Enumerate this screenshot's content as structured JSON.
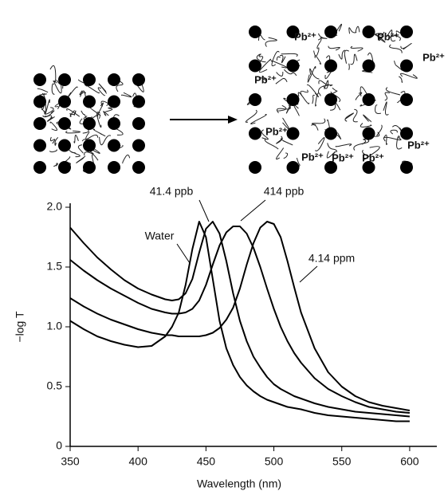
{
  "chart_data": {
    "type": "line",
    "x_label": "Wavelength (nm)",
    "y_label": "−log T",
    "x": [
      350,
      360,
      370,
      380,
      390,
      400,
      410,
      420,
      425,
      430,
      435,
      440,
      445,
      450,
      455,
      460,
      465,
      470,
      475,
      480,
      485,
      490,
      495,
      500,
      505,
      510,
      515,
      520,
      530,
      540,
      550,
      560,
      570,
      580,
      590,
      600
    ],
    "series": [
      {
        "name": "Water",
        "color": "#000000",
        "values": [
          1.05,
          0.98,
          0.92,
          0.88,
          0.85,
          0.83,
          0.84,
          0.92,
          1.0,
          1.12,
          1.35,
          1.65,
          1.88,
          1.75,
          1.4,
          1.05,
          0.82,
          0.68,
          0.58,
          0.51,
          0.46,
          0.42,
          0.39,
          0.37,
          0.35,
          0.33,
          0.32,
          0.31,
          0.28,
          0.26,
          0.25,
          0.24,
          0.23,
          0.22,
          0.21,
          0.21
        ]
      },
      {
        "name": "41.4 ppb",
        "color": "#000000",
        "values": [
          1.83,
          1.7,
          1.58,
          1.48,
          1.39,
          1.32,
          1.27,
          1.23,
          1.22,
          1.23,
          1.28,
          1.4,
          1.62,
          1.82,
          1.88,
          1.78,
          1.55,
          1.28,
          1.05,
          0.88,
          0.75,
          0.66,
          0.58,
          0.52,
          0.48,
          0.45,
          0.42,
          0.4,
          0.36,
          0.33,
          0.31,
          0.29,
          0.28,
          0.27,
          0.26,
          0.25
        ]
      },
      {
        "name": "414 ppb",
        "color": "#000000",
        "values": [
          1.56,
          1.47,
          1.39,
          1.32,
          1.26,
          1.2,
          1.15,
          1.12,
          1.11,
          1.11,
          1.12,
          1.15,
          1.22,
          1.35,
          1.52,
          1.68,
          1.79,
          1.84,
          1.84,
          1.78,
          1.66,
          1.5,
          1.32,
          1.15,
          1.0,
          0.88,
          0.78,
          0.7,
          0.57,
          0.48,
          0.42,
          0.37,
          0.33,
          0.31,
          0.29,
          0.28
        ]
      },
      {
        "name": "4.14 ppm",
        "color": "#000000",
        "values": [
          1.24,
          1.17,
          1.11,
          1.06,
          1.02,
          0.98,
          0.95,
          0.93,
          0.93,
          0.92,
          0.92,
          0.92,
          0.92,
          0.93,
          0.95,
          0.99,
          1.06,
          1.16,
          1.32,
          1.52,
          1.7,
          1.83,
          1.88,
          1.86,
          1.75,
          1.55,
          1.33,
          1.12,
          0.82,
          0.62,
          0.5,
          0.42,
          0.37,
          0.34,
          0.32,
          0.3
        ]
      }
    ],
    "xlim": [
      350,
      620
    ],
    "xticks": [
      350,
      400,
      450,
      500,
      550,
      600
    ],
    "ylim": [
      0,
      2
    ],
    "yticks": [
      0,
      0.5,
      {
        "value": 1,
        "label": "1.0"
      },
      1.5,
      {
        "value": 2,
        "label": "2.0"
      }
    ],
    "grid": false
  },
  "diagram": {
    "labels": [
      "Pb²⁺",
      "Pb²⁺",
      "Pb²⁺",
      "Pb²⁺",
      "Pb²⁺",
      "Pb²⁺",
      "Pb²⁺",
      "Pb²⁺",
      "Pb²⁺"
    ]
  }
}
